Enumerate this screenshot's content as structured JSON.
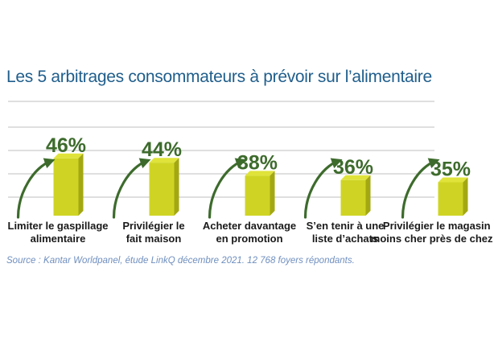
{
  "chart_data": {
    "type": "bar",
    "title": "Les 5 arbitrages consommateurs à prévoir sur l’alimentaire",
    "categories": [
      "Limiter le gaspillage alimentaire",
      "Privilégier le fait maison",
      "Acheter davantage en promotion",
      "S’en tenir à une liste d’achats",
      "Privilégier le magasin le moins cher près de chez moi"
    ],
    "category_lines": [
      [
        "Limiter le gaspillage",
        "alimentaire"
      ],
      [
        "Privilégier le",
        "fait maison"
      ],
      [
        "Acheter davantage",
        "en promotion"
      ],
      [
        "S’en tenir à une",
        "liste d’achats"
      ],
      [
        "Privilégier le magasin le",
        "moins cher près de chez moi"
      ]
    ],
    "values": [
      46,
      44,
      38,
      36,
      35
    ],
    "value_labels": [
      "46%",
      "44%",
      "38%",
      "36%",
      "35%"
    ],
    "unit": "%",
    "grid": true,
    "colors": {
      "bar": "#cfd424",
      "bar_side": "#a3a812",
      "value_text": "#3d6b2c",
      "arrow": "#3d6b2c",
      "title": "#1f5e8c",
      "grid": "#bfbfbf"
    }
  },
  "source": "Source : Kantar Worldpanel, étude LinkQ décembre 2021. 12 768 foyers répondants."
}
